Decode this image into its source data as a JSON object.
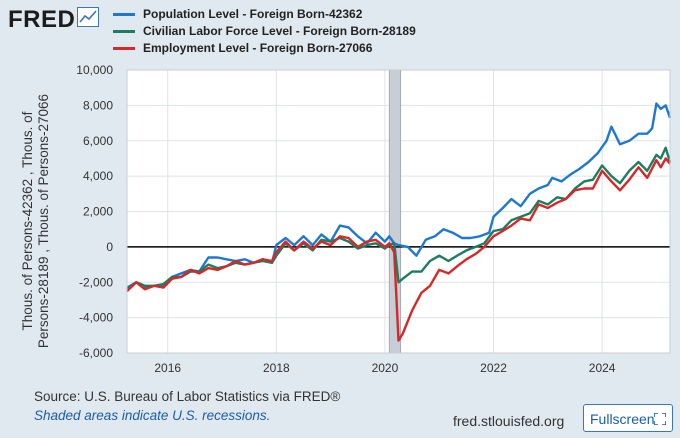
{
  "brand": {
    "logo_text": "FRED",
    "logo_mark": "chart-line-icon"
  },
  "legend": [
    {
      "label": "Population Level - Foreign Born-42362",
      "color": "#1f77d4"
    },
    {
      "label": "Civilian Labor Force Level - Foreign Born-28189",
      "color": "#1e7c5f"
    },
    {
      "label": "Employment Level - Foreign Born-27066",
      "color": "#d62828"
    }
  ],
  "axis": {
    "ylabel_lines": [
      "Thous. of Persons-42362 , Thous. of",
      "Persons-28189 , Thous. of Persons-27066"
    ]
  },
  "footer": {
    "source": "Source: U.S. Bureau of Labor Statistics via FRED®",
    "recession_note": "Shaded areas indicate U.S. recessions.",
    "url": "fred.stlouisfed.org",
    "fullscreen_label": "Fullscreen"
  },
  "chart_data": {
    "type": "line",
    "xlim": [
      2015.25,
      2025.25
    ],
    "ylim": [
      -6000,
      10000
    ],
    "xticks": [
      2016,
      2018,
      2020,
      2022,
      2024
    ],
    "yticks": [
      -6000,
      -4000,
      -2000,
      0,
      2000,
      4000,
      6000,
      8000,
      10000
    ],
    "ytick_labels": [
      "-6,000",
      "-4,000",
      "-2,000",
      "0",
      "2,000",
      "4,000",
      "6,000",
      "8,000",
      "10,000"
    ],
    "recession": [
      2020.08,
      2020.29
    ],
    "zero_line": 0,
    "series": [
      {
        "name": "Population Level - Foreign Born-42362",
        "color": "#1f77d4",
        "points": [
          [
            2015.25,
            -2300
          ],
          [
            2015.42,
            -2000
          ],
          [
            2015.58,
            -2300
          ],
          [
            2015.75,
            -2200
          ],
          [
            2015.92,
            -2200
          ],
          [
            2016.08,
            -1700
          ],
          [
            2016.25,
            -1500
          ],
          [
            2016.42,
            -1300
          ],
          [
            2016.58,
            -1400
          ],
          [
            2016.75,
            -600
          ],
          [
            2016.92,
            -600
          ],
          [
            2017.08,
            -700
          ],
          [
            2017.25,
            -800
          ],
          [
            2017.42,
            -700
          ],
          [
            2017.58,
            -900
          ],
          [
            2017.75,
            -700
          ],
          [
            2017.92,
            -900
          ],
          [
            2018.0,
            100
          ],
          [
            2018.17,
            500
          ],
          [
            2018.33,
            100
          ],
          [
            2018.5,
            600
          ],
          [
            2018.67,
            100
          ],
          [
            2018.83,
            700
          ],
          [
            2019.0,
            300
          ],
          [
            2019.17,
            1200
          ],
          [
            2019.33,
            1100
          ],
          [
            2019.5,
            600
          ],
          [
            2019.67,
            200
          ],
          [
            2019.83,
            800
          ],
          [
            2020.0,
            300
          ],
          [
            2020.08,
            600
          ],
          [
            2020.17,
            200
          ],
          [
            2020.25,
            100
          ],
          [
            2020.42,
            0
          ],
          [
            2020.58,
            -500
          ],
          [
            2020.75,
            400
          ],
          [
            2020.92,
            600
          ],
          [
            2021.08,
            1000
          ],
          [
            2021.25,
            800
          ],
          [
            2021.42,
            500
          ],
          [
            2021.58,
            500
          ],
          [
            2021.75,
            600
          ],
          [
            2021.92,
            800
          ],
          [
            2022.0,
            1700
          ],
          [
            2022.17,
            2200
          ],
          [
            2022.33,
            2700
          ],
          [
            2022.5,
            2300
          ],
          [
            2022.67,
            3000
          ],
          [
            2022.83,
            3300
          ],
          [
            2023.0,
            3500
          ],
          [
            2023.08,
            3900
          ],
          [
            2023.25,
            3700
          ],
          [
            2023.42,
            4100
          ],
          [
            2023.58,
            4400
          ],
          [
            2023.75,
            4800
          ],
          [
            2023.92,
            5300
          ],
          [
            2024.08,
            6000
          ],
          [
            2024.17,
            6800
          ],
          [
            2024.33,
            5800
          ],
          [
            2024.5,
            6000
          ],
          [
            2024.67,
            6400
          ],
          [
            2024.83,
            6400
          ],
          [
            2024.92,
            6700
          ],
          [
            2025.0,
            8100
          ],
          [
            2025.08,
            7800
          ],
          [
            2025.17,
            8000
          ],
          [
            2025.25,
            7300
          ]
        ]
      },
      {
        "name": "Civilian Labor Force Level - Foreign Born-28189",
        "color": "#1e7c5f",
        "points": [
          [
            2015.25,
            -2400
          ],
          [
            2015.42,
            -2000
          ],
          [
            2015.58,
            -2200
          ],
          [
            2015.75,
            -2200
          ],
          [
            2015.92,
            -2100
          ],
          [
            2016.08,
            -1700
          ],
          [
            2016.25,
            -1700
          ],
          [
            2016.42,
            -1400
          ],
          [
            2016.58,
            -1400
          ],
          [
            2016.75,
            -1000
          ],
          [
            2016.92,
            -1200
          ],
          [
            2017.08,
            -1100
          ],
          [
            2017.25,
            -900
          ],
          [
            2017.42,
            -1000
          ],
          [
            2017.58,
            -900
          ],
          [
            2017.75,
            -800
          ],
          [
            2017.92,
            -900
          ],
          [
            2018.0,
            -500
          ],
          [
            2018.17,
            200
          ],
          [
            2018.33,
            -200
          ],
          [
            2018.5,
            200
          ],
          [
            2018.67,
            -200
          ],
          [
            2018.83,
            400
          ],
          [
            2019.0,
            300
          ],
          [
            2019.17,
            500
          ],
          [
            2019.33,
            300
          ],
          [
            2019.5,
            -100
          ],
          [
            2019.67,
            100
          ],
          [
            2019.83,
            200
          ],
          [
            2020.0,
            -100
          ],
          [
            2020.08,
            100
          ],
          [
            2020.17,
            200
          ],
          [
            2020.25,
            -2000
          ],
          [
            2020.33,
            -1800
          ],
          [
            2020.5,
            -1400
          ],
          [
            2020.67,
            -1400
          ],
          [
            2020.83,
            -800
          ],
          [
            2021.0,
            -500
          ],
          [
            2021.17,
            -800
          ],
          [
            2021.33,
            -500
          ],
          [
            2021.5,
            -200
          ],
          [
            2021.67,
            0
          ],
          [
            2021.83,
            200
          ],
          [
            2022.0,
            900
          ],
          [
            2022.17,
            1000
          ],
          [
            2022.33,
            1500
          ],
          [
            2022.5,
            1700
          ],
          [
            2022.67,
            1900
          ],
          [
            2022.83,
            2600
          ],
          [
            2023.0,
            2400
          ],
          [
            2023.17,
            2800
          ],
          [
            2023.33,
            2700
          ],
          [
            2023.5,
            3300
          ],
          [
            2023.67,
            3700
          ],
          [
            2023.83,
            3800
          ],
          [
            2024.0,
            4600
          ],
          [
            2024.17,
            4000
          ],
          [
            2024.33,
            3600
          ],
          [
            2024.5,
            4300
          ],
          [
            2024.67,
            4800
          ],
          [
            2024.83,
            4300
          ],
          [
            2025.0,
            5200
          ],
          [
            2025.08,
            5000
          ],
          [
            2025.17,
            5600
          ],
          [
            2025.25,
            4800
          ]
        ]
      },
      {
        "name": "Employment Level - Foreign Born-27066",
        "color": "#d62828",
        "points": [
          [
            2015.25,
            -2500
          ],
          [
            2015.42,
            -2000
          ],
          [
            2015.58,
            -2400
          ],
          [
            2015.75,
            -2200
          ],
          [
            2015.92,
            -2300
          ],
          [
            2016.08,
            -1800
          ],
          [
            2016.25,
            -1700
          ],
          [
            2016.42,
            -1300
          ],
          [
            2016.58,
            -1500
          ],
          [
            2016.75,
            -1200
          ],
          [
            2016.92,
            -1300
          ],
          [
            2017.08,
            -1100
          ],
          [
            2017.25,
            -800
          ],
          [
            2017.42,
            -1000
          ],
          [
            2017.58,
            -900
          ],
          [
            2017.75,
            -700
          ],
          [
            2017.92,
            -800
          ],
          [
            2018.0,
            -300
          ],
          [
            2018.17,
            300
          ],
          [
            2018.33,
            -200
          ],
          [
            2018.5,
            300
          ],
          [
            2018.67,
            -100
          ],
          [
            2018.83,
            300
          ],
          [
            2019.0,
            100
          ],
          [
            2019.17,
            600
          ],
          [
            2019.33,
            500
          ],
          [
            2019.5,
            0
          ],
          [
            2019.67,
            300
          ],
          [
            2019.83,
            400
          ],
          [
            2020.0,
            0
          ],
          [
            2020.08,
            200
          ],
          [
            2020.17,
            -300
          ],
          [
            2020.25,
            -5300
          ],
          [
            2020.33,
            -4900
          ],
          [
            2020.5,
            -3600
          ],
          [
            2020.67,
            -2600
          ],
          [
            2020.83,
            -2200
          ],
          [
            2021.0,
            -1300
          ],
          [
            2021.17,
            -1500
          ],
          [
            2021.33,
            -1100
          ],
          [
            2021.5,
            -700
          ],
          [
            2021.67,
            -400
          ],
          [
            2021.83,
            0
          ],
          [
            2022.0,
            600
          ],
          [
            2022.17,
            900
          ],
          [
            2022.33,
            1200
          ],
          [
            2022.5,
            1600
          ],
          [
            2022.67,
            1500
          ],
          [
            2022.83,
            2400
          ],
          [
            2023.0,
            2200
          ],
          [
            2023.17,
            2500
          ],
          [
            2023.33,
            2700
          ],
          [
            2023.5,
            3200
          ],
          [
            2023.67,
            3300
          ],
          [
            2023.83,
            3300
          ],
          [
            2024.0,
            4300
          ],
          [
            2024.17,
            3700
          ],
          [
            2024.33,
            3200
          ],
          [
            2024.5,
            3800
          ],
          [
            2024.67,
            4500
          ],
          [
            2024.83,
            3900
          ],
          [
            2025.0,
            4900
          ],
          [
            2025.08,
            4500
          ],
          [
            2025.17,
            5000
          ],
          [
            2025.25,
            4700
          ]
        ]
      }
    ]
  }
}
